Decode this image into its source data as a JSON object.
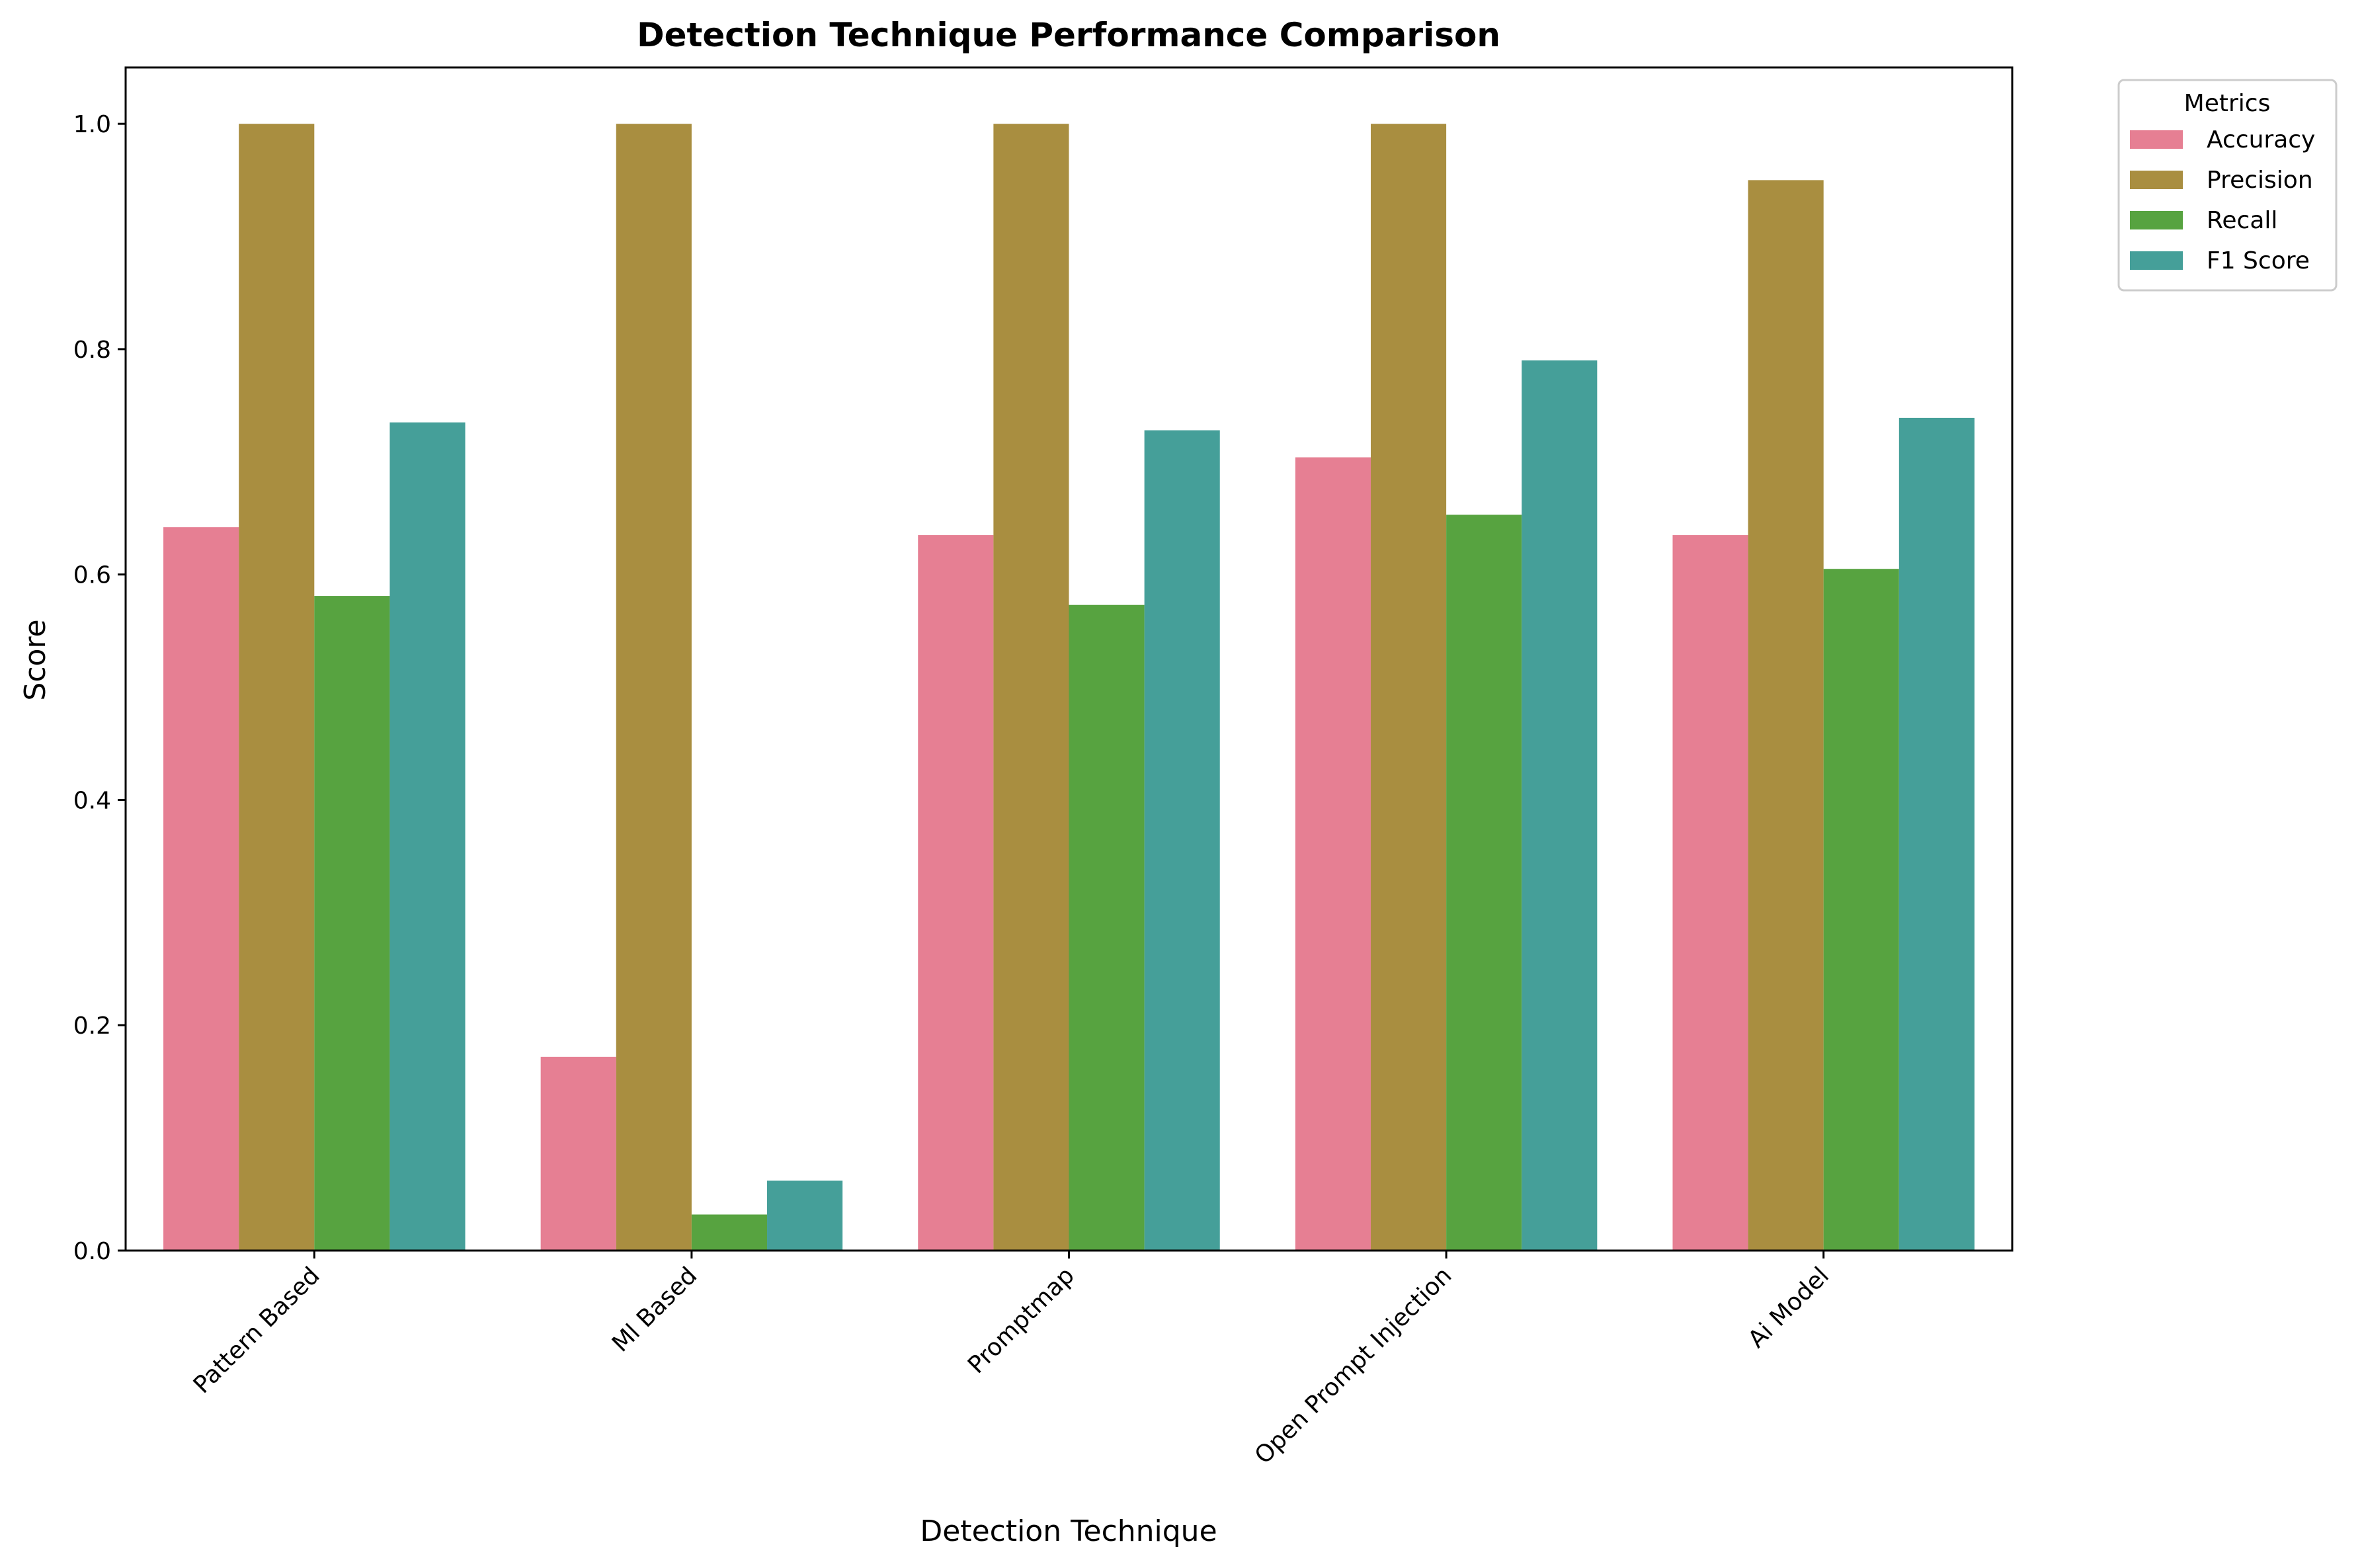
{
  "chart_data": {
    "type": "bar",
    "title": "Detection Technique Performance Comparison",
    "xlabel": "Detection Technique",
    "ylabel": "Score",
    "categories": [
      "Pattern Based",
      "Ml Based",
      "Promptmap",
      "Open Prompt Injection",
      "Ai Model"
    ],
    "series": [
      {
        "name": "Accuracy",
        "color": "#e67f93",
        "values": [
          0.642,
          0.172,
          0.635,
          0.704,
          0.635
        ]
      },
      {
        "name": "Precision",
        "color": "#a98e40",
        "values": [
          1.0,
          1.0,
          1.0,
          1.0,
          0.95
        ]
      },
      {
        "name": "Recall",
        "color": "#57a340",
        "values": [
          0.581,
          0.032,
          0.573,
          0.653,
          0.605
        ]
      },
      {
        "name": "F1 Score",
        "color": "#459f99",
        "values": [
          0.735,
          0.062,
          0.728,
          0.79,
          0.739
        ]
      }
    ],
    "ylim": [
      0,
      1.05
    ],
    "yticks": [
      "0.0",
      "0.2",
      "0.4",
      "0.6",
      "0.8",
      "1.0"
    ],
    "grid": false,
    "legend": {
      "title": "Metrics",
      "placement": "outside top-right"
    }
  }
}
